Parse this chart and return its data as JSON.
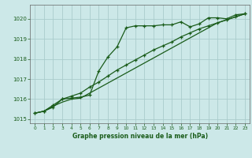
{
  "title": "Graphe pression niveau de la mer (hPa)",
  "background_color": "#cce8e8",
  "grid_color": "#aacccc",
  "line_color": "#1a5c1a",
  "xlim": [
    -0.5,
    23.5
  ],
  "ylim": [
    1014.8,
    1020.7
  ],
  "yticks": [
    1015,
    1016,
    1017,
    1018,
    1019,
    1020
  ],
  "xticks": [
    0,
    1,
    2,
    3,
    4,
    5,
    6,
    7,
    8,
    9,
    10,
    11,
    12,
    13,
    14,
    15,
    16,
    17,
    18,
    19,
    20,
    21,
    22,
    23
  ],
  "series1_x": [
    0,
    1,
    2,
    3,
    4,
    5,
    6,
    7,
    8,
    9,
    10,
    11,
    12,
    13,
    14,
    15,
    16,
    17,
    18,
    19,
    20,
    21,
    22,
    23
  ],
  "series1_y": [
    1015.3,
    1015.4,
    1015.6,
    1016.0,
    1016.05,
    1016.1,
    1016.2,
    1017.4,
    1018.1,
    1018.6,
    1019.55,
    1019.65,
    1019.65,
    1019.65,
    1019.7,
    1019.7,
    1019.85,
    1019.6,
    1019.75,
    1020.05,
    1020.05,
    1020.0,
    1020.2,
    1020.25
  ],
  "series2_x": [
    0,
    1,
    2,
    3,
    4,
    5,
    6,
    7,
    8,
    9,
    10,
    11,
    12,
    13,
    14,
    15,
    16,
    17,
    18,
    19,
    20,
    21,
    22,
    23
  ],
  "series2_y": [
    1015.3,
    1015.4,
    1015.65,
    1015.85,
    1016.0,
    1016.05,
    1016.3,
    1016.55,
    1016.8,
    1017.05,
    1017.3,
    1017.55,
    1017.8,
    1018.05,
    1018.3,
    1018.55,
    1018.8,
    1019.05,
    1019.3,
    1019.55,
    1019.8,
    1019.95,
    1020.1,
    1020.25
  ],
  "series3_x": [
    0,
    1,
    2,
    3,
    4,
    5,
    6,
    7,
    8,
    9,
    10,
    11,
    12,
    13,
    14,
    15,
    16,
    17,
    18,
    19,
    20,
    21,
    22,
    23
  ],
  "series3_y": [
    1015.3,
    1015.4,
    1015.7,
    1016.0,
    1016.15,
    1016.3,
    1016.6,
    1016.85,
    1017.15,
    1017.45,
    1017.7,
    1017.95,
    1018.2,
    1018.45,
    1018.65,
    1018.85,
    1019.1,
    1019.3,
    1019.5,
    1019.65,
    1019.8,
    1019.95,
    1020.1,
    1020.25
  ]
}
